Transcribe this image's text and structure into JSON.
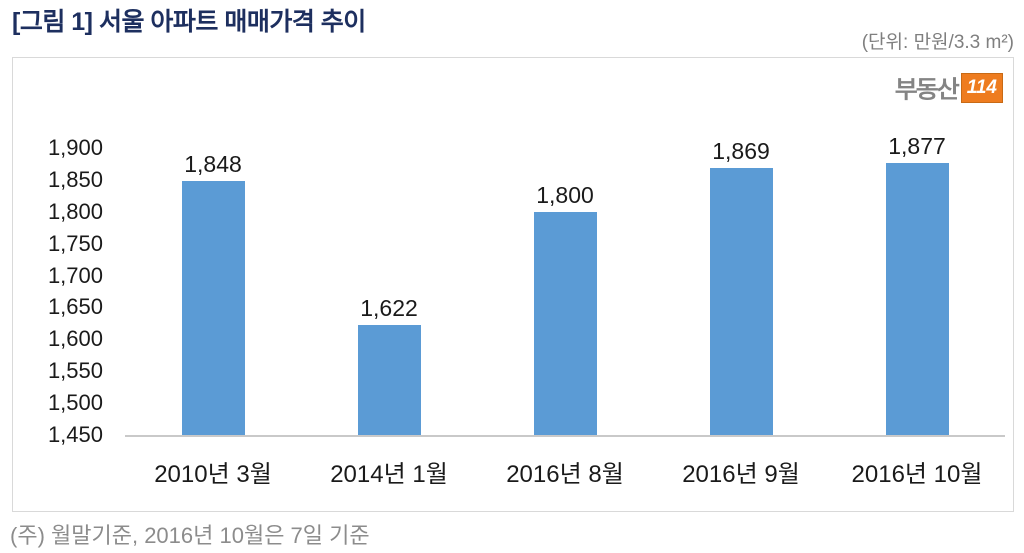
{
  "header": {
    "title": "[그림 1] 서울 아파트 매매가격 추이",
    "unit_label": "(단위: 만원/3.3 m²)"
  },
  "logo": {
    "text": "부동산",
    "badge": "114"
  },
  "footnote": "(주) 월말기준, 2016년 10월은 7일 기준",
  "colors": {
    "bar": "#5b9bd5",
    "title_navy": "#1d2f5f",
    "muted_gray": "#7f7f7f",
    "logo_orange": "#ee7c1f",
    "panel_border": "#d9d9d9",
    "axis_line": "#c9c9c9"
  },
  "chart_data": {
    "type": "bar",
    "title": "서울 아파트 매매가격 추이",
    "categories": [
      "2010년 3월",
      "2014년 1월",
      "2016년 8월",
      "2016년 9월",
      "2016년 10월"
    ],
    "values": [
      1848,
      1622,
      1800,
      1869,
      1877
    ],
    "value_labels": [
      "1,848",
      "1,622",
      "1,800",
      "1,869",
      "1,877"
    ],
    "xlabel": "",
    "ylabel": "만원/3.3m²",
    "ylim": [
      1450,
      1900
    ],
    "yticks": [
      1900,
      1850,
      1800,
      1750,
      1700,
      1650,
      1600,
      1550,
      1500,
      1450
    ],
    "grid": false,
    "legend": false
  }
}
